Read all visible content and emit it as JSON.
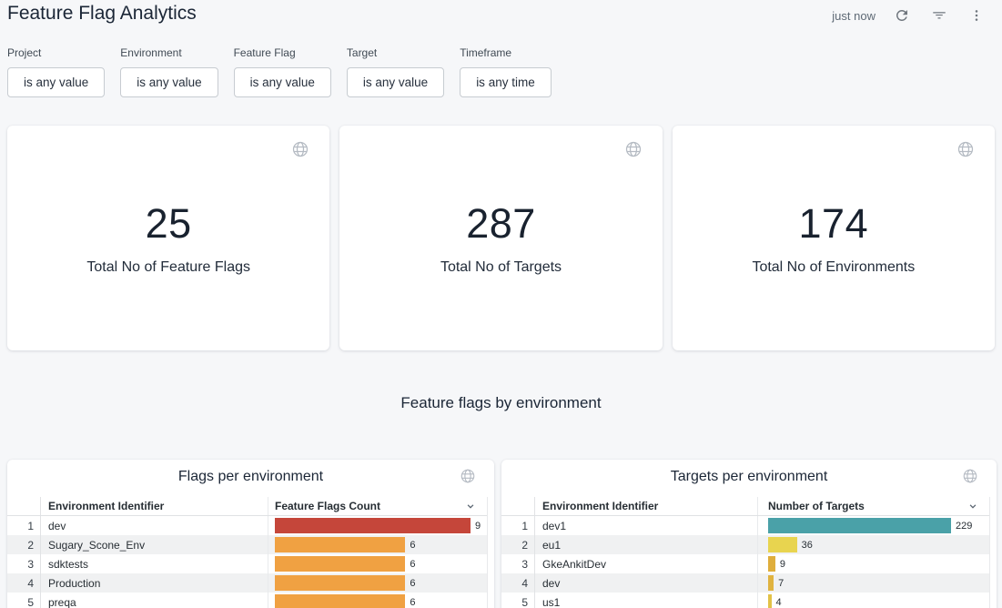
{
  "page": {
    "title": "Feature Flag Analytics",
    "refresh_status": "just now",
    "section_title": "Feature flags by environment"
  },
  "icons": {
    "refresh": "circular-arrow",
    "filter": "filter-lines",
    "menu": "kebab-vertical-dots",
    "globe": "globe-meridians",
    "sort": "chevron-down"
  },
  "filters": {
    "items": [
      {
        "label": "Project",
        "value": "is any value"
      },
      {
        "label": "Environment",
        "value": "is any value"
      },
      {
        "label": "Feature Flag",
        "value": "is any value"
      },
      {
        "label": "Target",
        "value": "is any value"
      },
      {
        "label": "Timeframe",
        "value": "is any time"
      }
    ]
  },
  "tiles": [
    {
      "value": "25",
      "label": "Total No of Feature Flags"
    },
    {
      "value": "287",
      "label": "Total No of Targets"
    },
    {
      "value": "174",
      "label": "Total No of Environments"
    }
  ],
  "chart_data": [
    {
      "type": "table",
      "title": "Flags per environment",
      "columns": [
        "Environment Identifier",
        "Feature Flags Count"
      ],
      "bar_axis_min": 0,
      "scale_max": 9,
      "rows": [
        {
          "rank": "1",
          "env": "dev",
          "value": 9,
          "color": "#c5463a"
        },
        {
          "rank": "2",
          "env": "Sugary_Scone_Env",
          "value": 6,
          "color": "#f0a142"
        },
        {
          "rank": "3",
          "env": "sdktests",
          "value": 6,
          "color": "#f0a142"
        },
        {
          "rank": "4",
          "env": "Production",
          "value": 6,
          "color": "#f0a142"
        },
        {
          "rank": "5",
          "env": "preqa",
          "value": 6,
          "color": "#f0a142"
        }
      ]
    },
    {
      "type": "table",
      "title": "Targets per environment",
      "columns": [
        "Environment Identifier",
        "Number of Targets"
      ],
      "bar_axis_min": 0,
      "scale_max": 229,
      "rows": [
        {
          "rank": "1",
          "env": "dev1",
          "value": 229,
          "color": "#4aa1a8"
        },
        {
          "rank": "2",
          "env": "eu1",
          "value": 36,
          "color": "#e8d44f"
        },
        {
          "rank": "3",
          "env": "GkeAnkitDev",
          "value": 9,
          "color": "#dfae3c"
        },
        {
          "rank": "4",
          "env": "dev",
          "value": 7,
          "color": "#e0b340"
        },
        {
          "rank": "5",
          "env": "us1",
          "value": 4,
          "color": "#e2c247"
        }
      ]
    }
  ],
  "colors": {
    "background": "#f6f7f9",
    "card": "#ffffff",
    "text_primary": "#1b2636",
    "accent_red": "#c5463a",
    "accent_orange": "#f0a142",
    "accent_teal": "#4aa1a8",
    "accent_yellow": "#e8d44f"
  }
}
